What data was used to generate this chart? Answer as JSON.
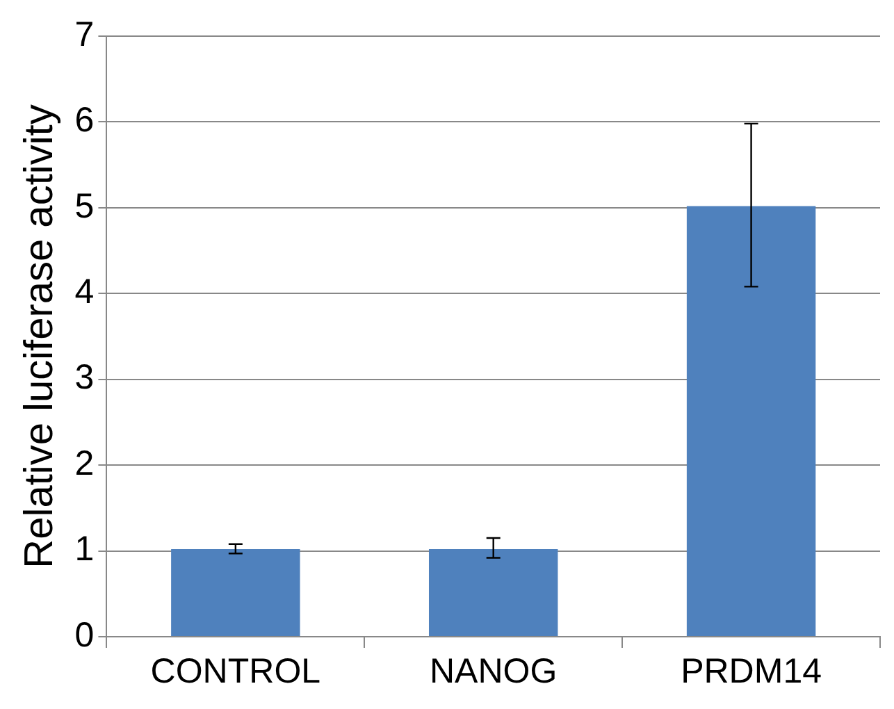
{
  "chart_data": {
    "type": "bar",
    "ylabel": "Relative luciferase activity",
    "categories": [
      "CONTROL",
      "NANOG",
      "PRDM14"
    ],
    "values": [
      1.02,
      1.02,
      5.02
    ],
    "errors": [
      [
        0.97,
        1.08
      ],
      [
        0.92,
        1.15
      ],
      [
        4.08,
        5.98
      ]
    ],
    "color": "#4f81bd",
    "ylim": [
      0,
      7
    ],
    "yticks": [
      0,
      1,
      2,
      3,
      4,
      5,
      6,
      7
    ],
    "grid": "y",
    "legend": false
  }
}
